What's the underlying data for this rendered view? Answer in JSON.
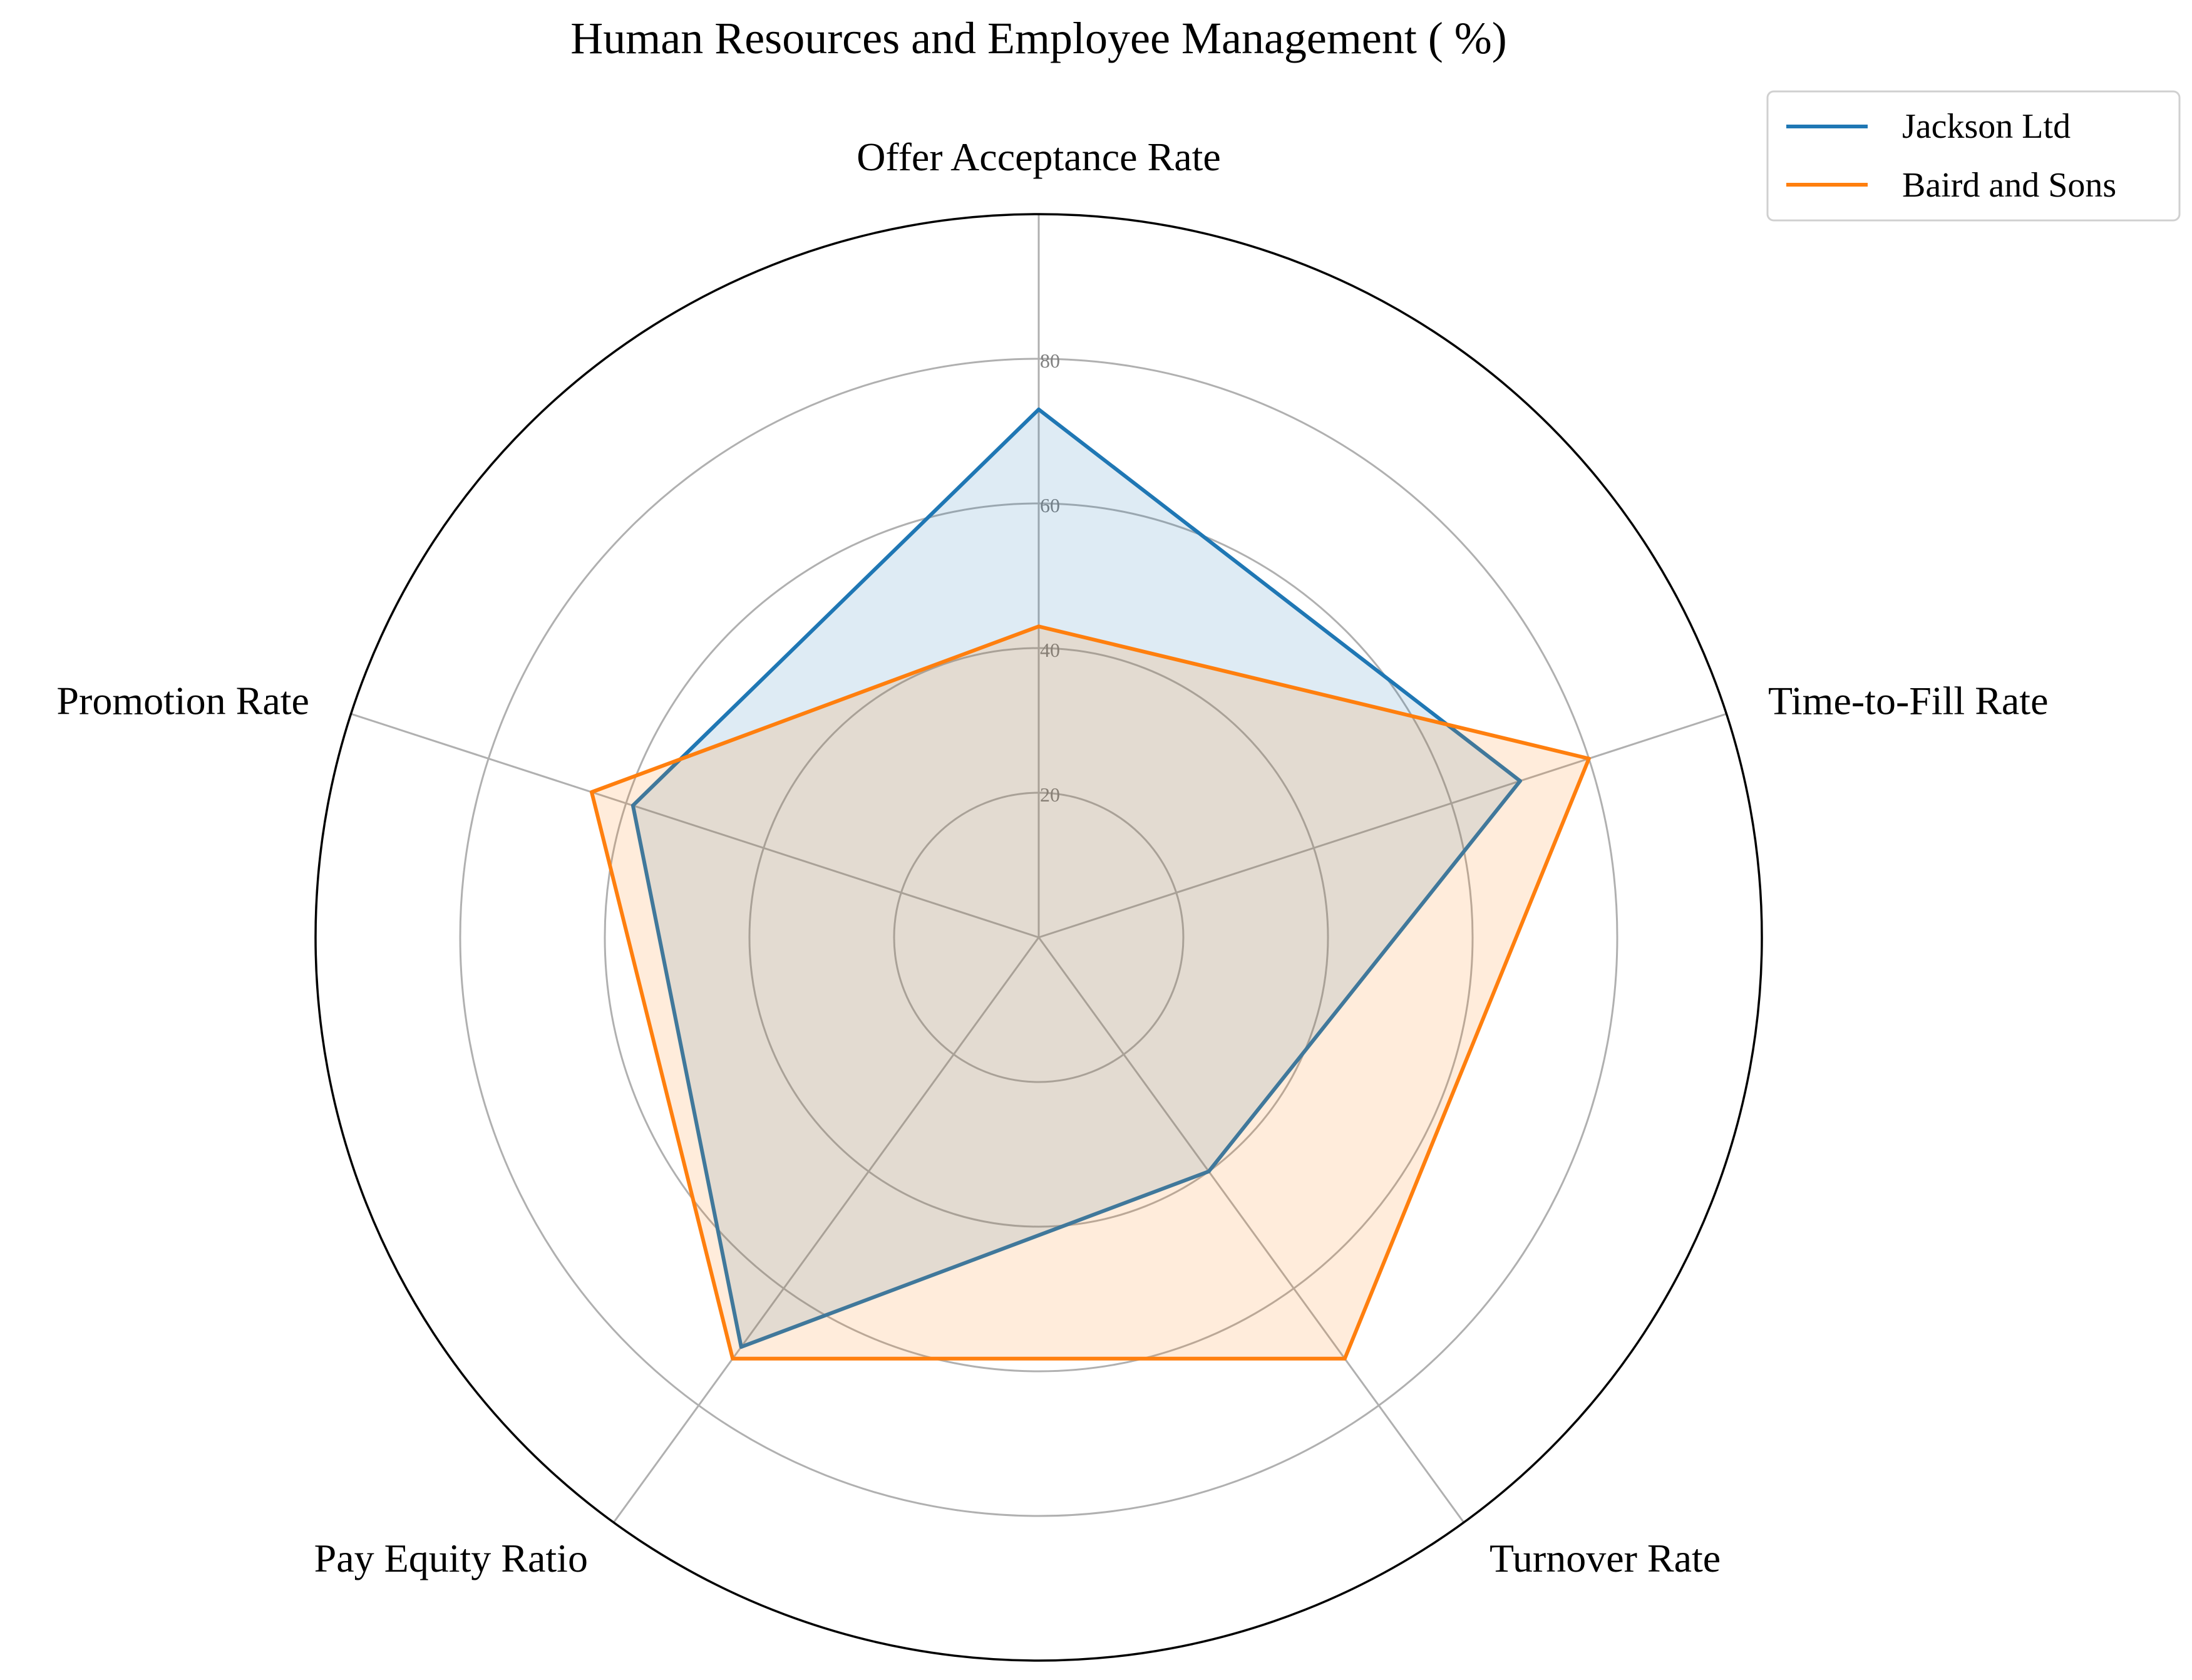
{
  "chart_data": {
    "type": "radar",
    "title": "Human Resources and Employee Management ( %)",
    "categories": [
      "Offer Acceptance Rate",
      "Time-to-Fill Rate",
      "Turnover Rate",
      "Pay Equity Ratio",
      "Promotion Rate"
    ],
    "rlim": [
      0,
      100
    ],
    "rticks": [
      20,
      40,
      60,
      80
    ],
    "series": [
      {
        "name": "Jackson Ltd",
        "values": [
          73,
          70,
          40,
          70,
          59
        ],
        "color": "#1f77b4",
        "fill_opacity": 0.15
      },
      {
        "name": "Baird and Sons",
        "values": [
          43,
          80,
          72,
          72,
          65
        ],
        "color": "#ff7f0e",
        "fill_opacity": 0.15
      }
    ],
    "legend_position": "top-right",
    "grid": true
  }
}
